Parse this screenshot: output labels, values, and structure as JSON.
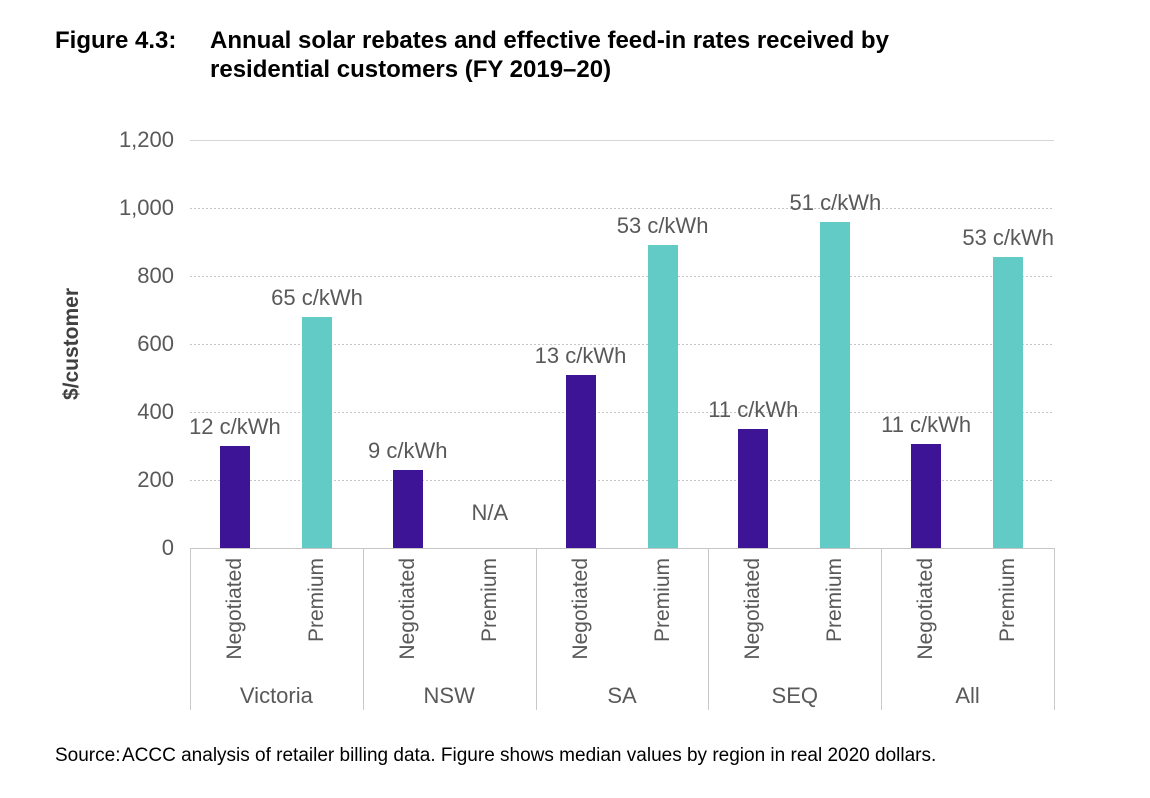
{
  "figure": {
    "label": "Figure 4.3:",
    "title": "Annual solar rebates and effective feed-in rates received by residential customers (FY 2019–20)"
  },
  "source": {
    "label": "Source:",
    "text": "ACCC analysis of retailer billing data. Figure shows median values by region in real 2020 dollars."
  },
  "chart_data": {
    "type": "bar",
    "categories": [
      "Victoria",
      "NSW",
      "SA",
      "SEQ",
      "All"
    ],
    "series": [
      {
        "name": "Negotiated",
        "color": "#3d1496",
        "values": [
          300,
          230,
          510,
          350,
          305
        ],
        "labels": [
          "12 c/kWh",
          "9 c/kWh",
          "13 c/kWh",
          "11 c/kWh",
          "11 c/kWh"
        ]
      },
      {
        "name": "Premium",
        "color": "#62cbc5",
        "values": [
          680,
          null,
          890,
          960,
          855
        ],
        "labels": [
          "65 c/kWh",
          "N/A",
          "53 c/kWh",
          "51 c/kWh",
          "53 c/kWh"
        ]
      }
    ],
    "title": "Annual solar rebates and effective feed-in rates received by residential customers (FY 2019–20)",
    "xlabel": "",
    "ylabel": "$/customer",
    "ylim": [
      0,
      1200
    ],
    "ytick_step": 200,
    "ytick_labels": [
      "0",
      "200",
      "400",
      "600",
      "800",
      "1,000",
      "1,200"
    ],
    "grid": true,
    "legend": "none",
    "bar_colors": {
      "negotiated": "#3d1496",
      "premium": "#62cbc5"
    },
    "text_color": "#595959"
  }
}
